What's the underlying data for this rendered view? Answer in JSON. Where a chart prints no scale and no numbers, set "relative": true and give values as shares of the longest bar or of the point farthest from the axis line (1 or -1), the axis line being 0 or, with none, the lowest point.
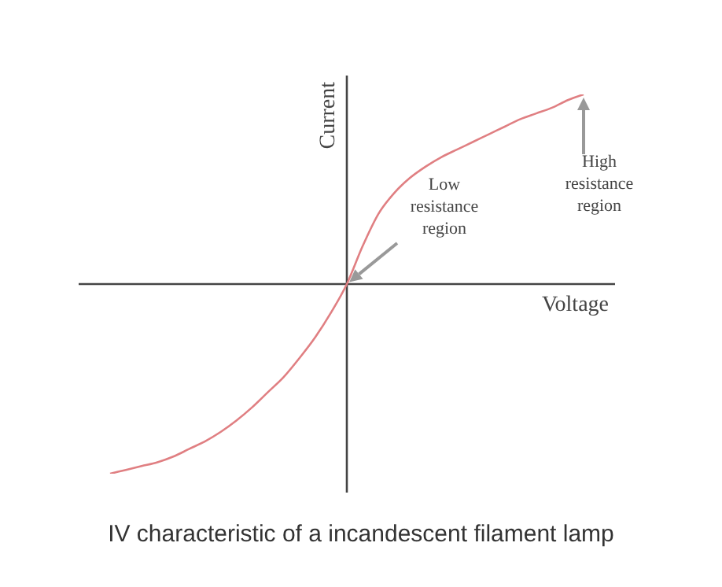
{
  "chart_data": {
    "type": "line",
    "title": "IV characteristic of a incandescent filament lamp",
    "xlabel": "Voltage",
    "ylabel": "Current",
    "relative": true,
    "grid": false,
    "legend": false,
    "marker": "none",
    "line_style": "solid",
    "categories": [
      null,
      null,
      null,
      null,
      null,
      null,
      null,
      null,
      null,
      null,
      null,
      null,
      null,
      null,
      null,
      null,
      null,
      null,
      null,
      null,
      null,
      null,
      null,
      null,
      null,
      null,
      null,
      null,
      null,
      null,
      null
    ],
    "series": [
      {
        "color": "#e07f82",
        "values": [
          -1,
          -0.98,
          -0.96,
          -0.94,
          -0.91,
          -0.87,
          -0.83,
          -0.78,
          -0.72,
          -0.65,
          -0.57,
          -0.49,
          -0.39,
          -0.28,
          -0.15,
          0,
          0.2,
          0.37,
          0.48,
          0.56,
          0.62,
          0.67,
          0.71,
          0.75,
          0.79,
          0.83,
          0.87,
          0.9,
          0.93,
          0.97,
          1
        ]
      }
    ],
    "annotations": [
      "Low resistance region",
      "High resistance region"
    ]
  }
}
